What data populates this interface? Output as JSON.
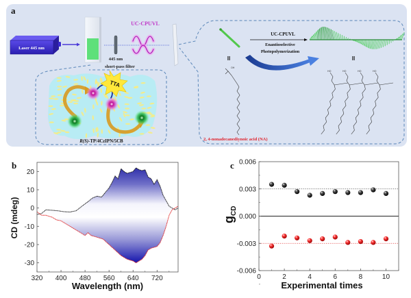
{
  "panel_a": {
    "label": "a",
    "laser_label": "Laser 445 nm",
    "filter_label_line1": "445 nm",
    "filter_label_line2": "short-pass filter",
    "light_label": "UC-CPUVL",
    "tta_label": "TTA",
    "system_label_italic": "R(S)",
    "system_label_rest": "-TP/4CzIPN/5CB",
    "arrow_top_label": "UC-CPUVL",
    "arrow_bottom_line1": "Enantioselective",
    "arrow_bottom_line2": "Photopolymerization",
    "monomer_symbol": "II",
    "polymer_symbol": "II",
    "oh_label": "OH",
    "ho_label": "HO",
    "monomer_name": "2, 4-nonadecanediynoic acid (NA)",
    "colors": {
      "panel_bg": "#dbe3f2",
      "laser": "#3a2ccc",
      "green": "#58e070",
      "magenta": "#cc33cc",
      "red_text": "#e0202a",
      "dash": "#5a86b8",
      "blue_arrow": "#2c56b0"
    }
  },
  "chart_data": [
    {
      "type": "area",
      "panel_label": "b",
      "title": "",
      "xlabel": "Wavelength (nm)",
      "ylabel": "CD (mdeg)",
      "xlim": [
        320,
        790
      ],
      "ylim": [
        -35,
        25
      ],
      "xticks": [
        320,
        400,
        480,
        560,
        640,
        720
      ],
      "yticks": [
        20,
        10,
        0,
        -10,
        -20,
        -30
      ],
      "grid": false,
      "fill": "blue gradient between curves, intense at extremes, white at 0",
      "series": [
        {
          "name": "positive (black)",
          "color": "#111111",
          "x": [
            320,
            335,
            350,
            370,
            390,
            410,
            430,
            450,
            470,
            490,
            505,
            520,
            535,
            550,
            560,
            570,
            580,
            590,
            600,
            610,
            620,
            630,
            640,
            650,
            660,
            670,
            680,
            690,
            700,
            710,
            720,
            730,
            740,
            750,
            760,
            770,
            780,
            790
          ],
          "y": [
            -3.5,
            -3,
            -1,
            -1.2,
            -1.5,
            -2,
            -2.2,
            -1.5,
            1,
            3.5,
            5.5,
            6.5,
            6,
            9,
            11,
            14,
            17.5,
            16,
            21.5,
            20,
            19,
            19.5,
            20,
            22,
            21,
            20.5,
            21,
            17,
            16,
            13,
            15.5,
            12,
            7,
            4,
            1,
            0,
            -1,
            0
          ]
        },
        {
          "name": "negative (red)",
          "color": "#e02020",
          "x": [
            320,
            335,
            350,
            370,
            385,
            400,
            420,
            440,
            460,
            480,
            490,
            500,
            520,
            540,
            560,
            580,
            600,
            610,
            620,
            630,
            640,
            650,
            660,
            670,
            680,
            690,
            700,
            710,
            720,
            730,
            740,
            750,
            760,
            770,
            780,
            790
          ],
          "y": [
            -2,
            -4,
            -4,
            -5,
            -6.5,
            -7,
            -9,
            -11,
            -13,
            -15,
            -13.5,
            -15,
            -16,
            -17,
            -20,
            -23,
            -26,
            -27,
            -28,
            -28.5,
            -29,
            -30,
            -29,
            -28,
            -26,
            -23,
            -22,
            -21.5,
            -21,
            -19,
            -15,
            -10,
            -4,
            -1,
            0,
            1
          ]
        }
      ]
    },
    {
      "type": "scatter",
      "panel_label": "c",
      "title": "",
      "xlabel": "Experimental times",
      "ylabel": "gCD",
      "ylabel_main": "g",
      "ylabel_sub": "CD",
      "xlim": [
        0,
        11
      ],
      "ylim": [
        -0.006,
        0.006
      ],
      "xticks": [
        0,
        2,
        4,
        6,
        8,
        10
      ],
      "yticks": [
        "0.006",
        "0.003",
        "0.000",
        "-0.003",
        "-0.006"
      ],
      "ytick_values": [
        0.006,
        0.003,
        0,
        -0.003,
        -0.006
      ],
      "grid": false,
      "reference_lines": [
        {
          "y": 0.003,
          "style": "dotted",
          "color": "#444444"
        },
        {
          "y": 0,
          "style": "solid",
          "color": "#222222"
        },
        {
          "y": -0.003,
          "style": "dotted",
          "color": "#e03030"
        }
      ],
      "series": [
        {
          "name": "positive (black)",
          "color": "#111111",
          "x": [
            1,
            2,
            3,
            4,
            5,
            6,
            7,
            8,
            9,
            10
          ],
          "y": [
            0.0035,
            0.0034,
            0.0027,
            0.0023,
            0.0025,
            0.0027,
            0.0026,
            0.0026,
            0.0029,
            0.0025
          ]
        },
        {
          "name": "negative (red)",
          "color": "#e02020",
          "x": [
            1,
            2,
            3,
            4,
            5,
            6,
            7,
            8,
            9,
            10
          ],
          "y": [
            -0.0033,
            -0.0022,
            -0.0024,
            -0.0027,
            -0.0025,
            -0.0023,
            -0.0029,
            -0.0028,
            -0.0029,
            -0.0025
          ]
        }
      ]
    }
  ]
}
